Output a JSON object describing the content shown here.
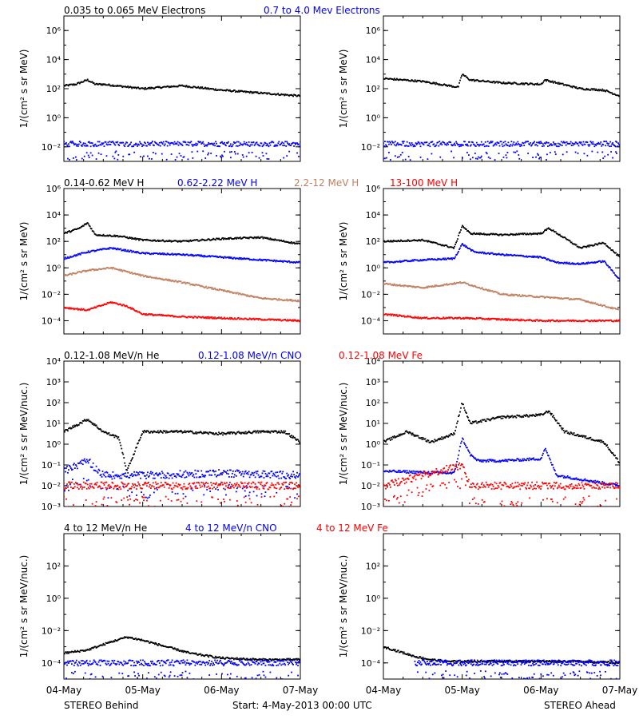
{
  "colors": {
    "axis": "#000000",
    "black": "#000000",
    "blue": "#0000ff",
    "tan": "#c08060",
    "red": "#ff0000"
  },
  "rows": [
    {
      "labels": [
        {
          "text": "0.035 to 0.065 MeV Electrons",
          "color": "#000000"
        },
        {
          "text": "0.7 to 4.0 Mev Electrons",
          "color": "#0000ff"
        }
      ],
      "ylabel_left": "1/(cm² s sr MeV)",
      "ylabel_right": "1/(cm² s sr MeV)"
    },
    {
      "labels": [
        {
          "text": "0.14-0.62 MeV H",
          "color": "#000000"
        },
        {
          "text": "0.62-2.22 MeV H",
          "color": "#0000ff"
        },
        {
          "text": "2.2-12 MeV H",
          "color": "#c08060"
        },
        {
          "text": "13-100 MeV H",
          "color": "#ff0000"
        }
      ],
      "ylabel_left": "1/(cm² s sr MeV)",
      "ylabel_right": "1/(cm² s sr MeV)"
    },
    {
      "labels": [
        {
          "text": "0.12-1.08 MeV/n He",
          "color": "#000000"
        },
        {
          "text": "0.12-1.08 MeV/n CNO",
          "color": "#0000ff"
        },
        {
          "text": "0.12-1.08 MeV Fe",
          "color": "#ff0000"
        }
      ],
      "ylabel_left": "1/(cm² s sr MeV/nuc.)",
      "ylabel_right": "1/(cm² s sr MeV/nuc.)"
    },
    {
      "labels": [
        {
          "text": "4 to 12 MeV/n He",
          "color": "#000000"
        },
        {
          "text": "4 to 12 MeV/n CNO",
          "color": "#0000ff"
        },
        {
          "text": "4 to 12 MeV Fe",
          "color": "#ff0000"
        }
      ],
      "ylabel_left": "1/(cm² s sr MeV/nuc.)",
      "ylabel_right": "1/(cm² s sr MeV/nuc.)"
    }
  ],
  "x_ticks": [
    "04-May",
    "05-May",
    "06-May",
    "07-May"
  ],
  "footer": {
    "left": "STEREO Behind",
    "center": "Start:  4-May-2013 00:00 UTC",
    "right": "STEREO Ahead"
  },
  "chart_data": [
    {
      "type": "scatter",
      "row": 0,
      "side": "left",
      "log_y": true,
      "ylim_exp": [
        -3,
        7
      ],
      "yticks": [
        {
          "exp": -2,
          "label": "10⁻²"
        },
        {
          "exp": 0,
          "label": "10⁰"
        },
        {
          "exp": 2,
          "label": "10²"
        },
        {
          "exp": 4,
          "label": "10⁴"
        },
        {
          "exp": 6,
          "label": "10⁶"
        }
      ],
      "xlim_days": [
        0,
        3
      ],
      "series": [
        {
          "color": "#000000",
          "x": [
            0,
            0.15,
            0.3,
            0.4,
            0.5,
            1.0,
            1.5,
            2.0,
            2.5,
            3.0
          ],
          "y_exp": [
            2.2,
            2.3,
            2.6,
            2.3,
            2.3,
            2.0,
            2.2,
            1.9,
            1.7,
            1.5
          ]
        },
        {
          "color": "#0000ff",
          "x": [
            0,
            3
          ],
          "y_exp": [
            -1.8,
            -1.8
          ],
          "noisy": true
        }
      ]
    },
    {
      "type": "scatter",
      "row": 0,
      "side": "right",
      "log_y": true,
      "ylim_exp": [
        -3,
        7
      ],
      "yticks": [
        {
          "exp": -2,
          "label": "10⁻²"
        },
        {
          "exp": 0,
          "label": "10⁰"
        },
        {
          "exp": 2,
          "label": "10²"
        },
        {
          "exp": 4,
          "label": "10⁴"
        },
        {
          "exp": 6,
          "label": "10⁶"
        }
      ],
      "xlim_days": [
        0,
        3
      ],
      "series": [
        {
          "color": "#000000",
          "x": [
            0,
            0.5,
            0.95,
            1.0,
            1.1,
            1.5,
            2.0,
            2.05,
            2.5,
            2.8,
            3.0
          ],
          "y_exp": [
            2.7,
            2.5,
            2.1,
            3.0,
            2.6,
            2.4,
            2.3,
            2.6,
            2.0,
            1.9,
            1.5
          ]
        },
        {
          "color": "#0000ff",
          "x": [
            0,
            3
          ],
          "y_exp": [
            -1.8,
            -1.8
          ],
          "noisy": true
        }
      ]
    },
    {
      "type": "scatter",
      "row": 1,
      "side": "left",
      "log_y": true,
      "ylim_exp": [
        -5,
        6
      ],
      "yticks": [
        {
          "exp": -4,
          "label": "10⁻⁴"
        },
        {
          "exp": -2,
          "label": "10⁻²"
        },
        {
          "exp": 0,
          "label": "10⁰"
        },
        {
          "exp": 2,
          "label": "10²"
        },
        {
          "exp": 4,
          "label": "10⁴"
        },
        {
          "exp": 6,
          "label": "10⁶"
        }
      ],
      "xlim_days": [
        0,
        3
      ],
      "series": [
        {
          "color": "#000000",
          "x": [
            0,
            0.2,
            0.3,
            0.4,
            0.7,
            1.0,
            1.5,
            2.0,
            2.5,
            3.0
          ],
          "y_exp": [
            2.6,
            3.0,
            3.4,
            2.5,
            2.4,
            2.1,
            2.0,
            2.2,
            2.3,
            1.8
          ]
        },
        {
          "color": "#0000ff",
          "x": [
            0,
            0.3,
            0.6,
            1.0,
            1.5,
            2.0,
            2.5,
            3.0
          ],
          "y_exp": [
            0.7,
            1.2,
            1.5,
            1.1,
            1.0,
            0.8,
            0.6,
            0.4
          ]
        },
        {
          "color": "#c08060",
          "x": [
            0,
            0.3,
            0.6,
            1.0,
            1.5,
            2.0,
            2.5,
            3.0
          ],
          "y_exp": [
            -0.6,
            -0.2,
            0.0,
            -0.6,
            -1.1,
            -1.7,
            -2.3,
            -2.5
          ]
        },
        {
          "color": "#ff0000",
          "x": [
            0,
            0.3,
            0.6,
            0.8,
            1.0,
            1.5,
            2.0,
            2.5,
            3.0
          ],
          "y_exp": [
            -3.0,
            -3.2,
            -2.6,
            -2.9,
            -3.5,
            -3.7,
            -3.8,
            -3.9,
            -4.0
          ]
        }
      ]
    },
    {
      "type": "scatter",
      "row": 1,
      "side": "right",
      "log_y": true,
      "ylim_exp": [
        -5,
        6
      ],
      "yticks": [
        {
          "exp": -4,
          "label": "10⁻⁴"
        },
        {
          "exp": -2,
          "label": "10⁻²"
        },
        {
          "exp": 0,
          "label": "10⁰"
        },
        {
          "exp": 2,
          "label": "10²"
        },
        {
          "exp": 4,
          "label": "10⁴"
        },
        {
          "exp": 6,
          "label": "10⁶"
        }
      ],
      "xlim_days": [
        0,
        3
      ],
      "series": [
        {
          "color": "#000000",
          "x": [
            0,
            0.5,
            0.9,
            1.0,
            1.1,
            1.5,
            2.0,
            2.1,
            2.5,
            2.8,
            3.0
          ],
          "y_exp": [
            2.0,
            2.1,
            1.5,
            3.2,
            2.6,
            2.5,
            2.6,
            3.0,
            1.5,
            1.9,
            0.8
          ]
        },
        {
          "color": "#0000ff",
          "x": [
            0,
            0.5,
            0.9,
            1.0,
            1.15,
            1.5,
            2.0,
            2.2,
            2.5,
            2.8,
            3.0
          ],
          "y_exp": [
            0.4,
            0.6,
            0.7,
            1.8,
            1.2,
            1.0,
            0.8,
            0.4,
            0.3,
            0.5,
            -0.9
          ]
        },
        {
          "color": "#c08060",
          "x": [
            0,
            0.5,
            1.0,
            1.5,
            2.0,
            2.5,
            3.0
          ],
          "y_exp": [
            -1.2,
            -1.5,
            -1.1,
            -2.0,
            -2.2,
            -2.4,
            -3.2
          ]
        },
        {
          "color": "#ff0000",
          "x": [
            0,
            0.5,
            1.0,
            1.5,
            2.0,
            2.5,
            3.0
          ],
          "y_exp": [
            -3.5,
            -3.8,
            -3.8,
            -3.9,
            -4.0,
            -4.0,
            -4.0
          ]
        }
      ]
    },
    {
      "type": "scatter",
      "row": 2,
      "side": "left",
      "log_y": true,
      "ylim_exp": [
        -3,
        4
      ],
      "yticks": [
        {
          "exp": -3,
          "label": "10⁻³"
        },
        {
          "exp": -2,
          "label": "10⁻²"
        },
        {
          "exp": -1,
          "label": "10⁻¹"
        },
        {
          "exp": 0,
          "label": "10⁰"
        },
        {
          "exp": 1,
          "label": "10¹"
        },
        {
          "exp": 2,
          "label": "10²"
        },
        {
          "exp": 3,
          "label": "10³"
        },
        {
          "exp": 4,
          "label": "10⁴"
        }
      ],
      "xlim_days": [
        0,
        3
      ],
      "series": [
        {
          "color": "#000000",
          "x": [
            0,
            0.3,
            0.5,
            0.7,
            0.8,
            1.0,
            1.5,
            2.0,
            2.5,
            2.8,
            3.0
          ],
          "y_exp": [
            0.6,
            1.2,
            0.6,
            0.3,
            -1.3,
            0.6,
            0.6,
            0.5,
            0.6,
            0.6,
            0.1
          ]
        },
        {
          "color": "#0000ff",
          "x": [
            0,
            0.3,
            0.5,
            1.0,
            2.0,
            3.0
          ],
          "y_exp": [
            -1.3,
            -0.8,
            -1.5,
            -1.5,
            -1.4,
            -1.5
          ],
          "noisy": true
        },
        {
          "color": "#ff0000",
          "x": [
            0,
            3
          ],
          "y_exp": [
            -2.0,
            -2.0
          ],
          "noisy": true
        }
      ]
    },
    {
      "type": "scatter",
      "row": 2,
      "side": "right",
      "log_y": true,
      "ylim_exp": [
        -3,
        4
      ],
      "yticks": [
        {
          "exp": -3,
          "label": "10⁻³"
        },
        {
          "exp": -2,
          "label": "10⁻²"
        },
        {
          "exp": -1,
          "label": "10⁻¹"
        },
        {
          "exp": 0,
          "label": "10⁰"
        },
        {
          "exp": 1,
          "label": "10¹"
        },
        {
          "exp": 2,
          "label": "10²"
        },
        {
          "exp": 3,
          "label": "10³"
        },
        {
          "exp": 4,
          "label": "10⁴"
        }
      ],
      "xlim_days": [
        0,
        3
      ],
      "series": [
        {
          "color": "#000000",
          "x": [
            0,
            0.3,
            0.6,
            0.9,
            1.0,
            1.1,
            1.5,
            2.0,
            2.1,
            2.3,
            2.6,
            2.8,
            3.0
          ],
          "y_exp": [
            0.1,
            0.6,
            0.1,
            0.5,
            2.0,
            1.0,
            1.3,
            1.4,
            1.6,
            0.6,
            0.3,
            0.1,
            -0.9
          ]
        },
        {
          "color": "#0000ff",
          "x": [
            0,
            0.9,
            1.0,
            1.1,
            1.2,
            1.5,
            2.0,
            2.05,
            2.2,
            3.0
          ],
          "y_exp": [
            -1.3,
            -1.4,
            0.3,
            -0.5,
            -0.8,
            -0.8,
            -0.7,
            -0.2,
            -1.5,
            -2.0
          ]
        },
        {
          "color": "#ff0000",
          "x": [
            0,
            1.0,
            1.1,
            3.0
          ],
          "y_exp": [
            -2.0,
            -1.0,
            -2.0,
            -2.0
          ],
          "noisy": true
        }
      ]
    },
    {
      "type": "scatter",
      "row": 3,
      "side": "left",
      "log_y": true,
      "ylim_exp": [
        -5,
        4
      ],
      "yticks": [
        {
          "exp": -4,
          "label": "10⁻⁴"
        },
        {
          "exp": -2,
          "label": "10⁻²"
        },
        {
          "exp": 0,
          "label": "10⁰"
        },
        {
          "exp": 2,
          "label": "10²"
        }
      ],
      "xlim_days": [
        0,
        3
      ],
      "series": [
        {
          "color": "#000000",
          "x": [
            0,
            0.3,
            0.6,
            0.8,
            1.0,
            1.3,
            1.6,
            2.0,
            2.5,
            3.0
          ],
          "y_exp": [
            -3.4,
            -3.2,
            -2.7,
            -2.4,
            -2.6,
            -3.0,
            -3.4,
            -3.7,
            -3.8,
            -3.8
          ]
        },
        {
          "color": "#0000ff",
          "x": [
            0,
            3
          ],
          "y_exp": [
            -4.0,
            -4.0
          ],
          "noisy": true
        }
      ]
    },
    {
      "type": "scatter",
      "row": 3,
      "side": "right",
      "log_y": true,
      "ylim_exp": [
        -5,
        4
      ],
      "yticks": [
        {
          "exp": -4,
          "label": "10⁻⁴"
        },
        {
          "exp": -2,
          "label": "10⁻²"
        },
        {
          "exp": 0,
          "label": "10⁰"
        },
        {
          "exp": 2,
          "label": "10²"
        }
      ],
      "xlim_days": [
        0,
        3
      ],
      "series": [
        {
          "color": "#000000",
          "x": [
            0,
            0.2,
            0.4,
            0.6,
            0.8,
            1.0,
            1.5,
            2.0,
            2.5,
            3.0
          ],
          "y_exp": [
            -3.0,
            -3.3,
            -3.6,
            -3.8,
            -3.9,
            -3.9,
            -3.9,
            -3.9,
            -3.9,
            -4.0
          ]
        },
        {
          "color": "#0000ff",
          "x": [
            0.4,
            3
          ],
          "y_exp": [
            -4.0,
            -4.0
          ],
          "noisy": true
        }
      ]
    }
  ]
}
